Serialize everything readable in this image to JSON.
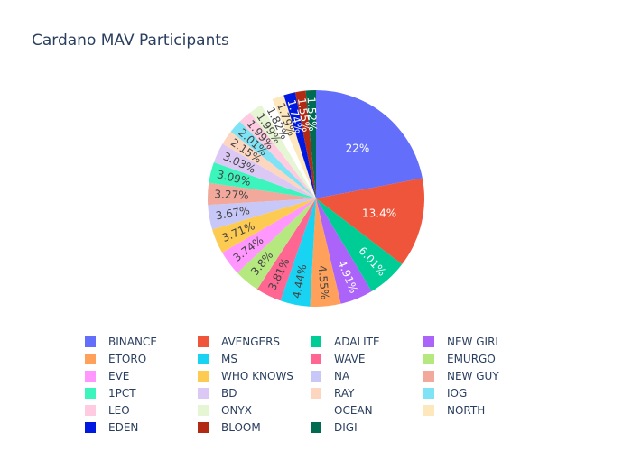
{
  "chart_data": {
    "type": "pie",
    "title": "Cardano MAV Participants",
    "legend_position": "bottom",
    "legend_columns": 4,
    "slices": [
      {
        "label": "BINANCE",
        "percent": 22,
        "text": "22%",
        "color": "#636efa"
      },
      {
        "label": "AVENGERS",
        "percent": 13.4,
        "text": "13.4%",
        "color": "#EF553B"
      },
      {
        "label": "ADALITE",
        "percent": 6.01,
        "text": "6.01%",
        "color": "#00cc96"
      },
      {
        "label": "NEW GIRL",
        "percent": 4.91,
        "text": "4.91%",
        "color": "#ab63fa"
      },
      {
        "label": "ETORO",
        "percent": 4.55,
        "text": "4.55%",
        "color": "#FFA15A"
      },
      {
        "label": "MS",
        "percent": 4.44,
        "text": "4.44%",
        "color": "#19d3f3"
      },
      {
        "label": "WAVE",
        "percent": 3.81,
        "text": "3.81%",
        "color": "#FF6692"
      },
      {
        "label": "EMURGO",
        "percent": 3.8,
        "text": "3.8%",
        "color": "#B6E880"
      },
      {
        "label": "EVE",
        "percent": 3.74,
        "text": "3.74%",
        "color": "#FF97FF"
      },
      {
        "label": "WHO KNOWS",
        "percent": 3.71,
        "text": "3.71%",
        "color": "#FECB52"
      },
      {
        "label": "NA",
        "percent": 3.67,
        "text": "3.67%",
        "color": "#c8c8f8"
      },
      {
        "label": "NEW GUY",
        "percent": 3.27,
        "text": "3.27%",
        "color": "#f2a89a"
      },
      {
        "label": "1PCT",
        "percent": 3.09,
        "text": "3.09%",
        "color": "#3cf5bc"
      },
      {
        "label": "BD",
        "percent": 3.03,
        "text": "3.03%",
        "color": "#dcc8f5"
      },
      {
        "label": "RAY",
        "percent": 2.15,
        "text": "2.15%",
        "color": "#fdd6c0"
      },
      {
        "label": "IOG",
        "percent": 2.01,
        "text": "2.01%",
        "color": "#7fe3f5"
      },
      {
        "label": "LEO",
        "percent": 1.99,
        "text": "1.99%",
        "color": "#fecbe0"
      },
      {
        "label": "ONYX",
        "percent": 1.99,
        "text": "1.99%",
        "color": "#e6f5d3"
      },
      {
        "label": "OCEAN",
        "percent": 1.82,
        "text": "1.82%",
        "color": "#ffffff"
      },
      {
        "label": "NORTH",
        "percent": 1.79,
        "text": "1.79%",
        "color": "#fde7bd"
      },
      {
        "label": "EDEN",
        "percent": 1.74,
        "text": "1.74%",
        "color": "#0019e0"
      },
      {
        "label": "BLOOM",
        "percent": 1.55,
        "text": "1.55%",
        "color": "#b22a14"
      },
      {
        "label": "DIGI",
        "percent": 1.52,
        "text": "1.52%",
        "color": "#006b50"
      }
    ],
    "legend_order": [
      "BINANCE",
      "AVENGERS",
      "ADALITE",
      "NEW GIRL",
      "ETORO",
      "MS",
      "WAVE",
      "EMURGO",
      "EVE",
      "WHO KNOWS",
      "NA",
      "NEW GUY",
      "1PCT",
      "BD",
      "RAY",
      "IOG",
      "LEO",
      "ONYX",
      "OCEAN",
      "NORTH",
      "EDEN",
      "BLOOM",
      "DIGI"
    ]
  }
}
